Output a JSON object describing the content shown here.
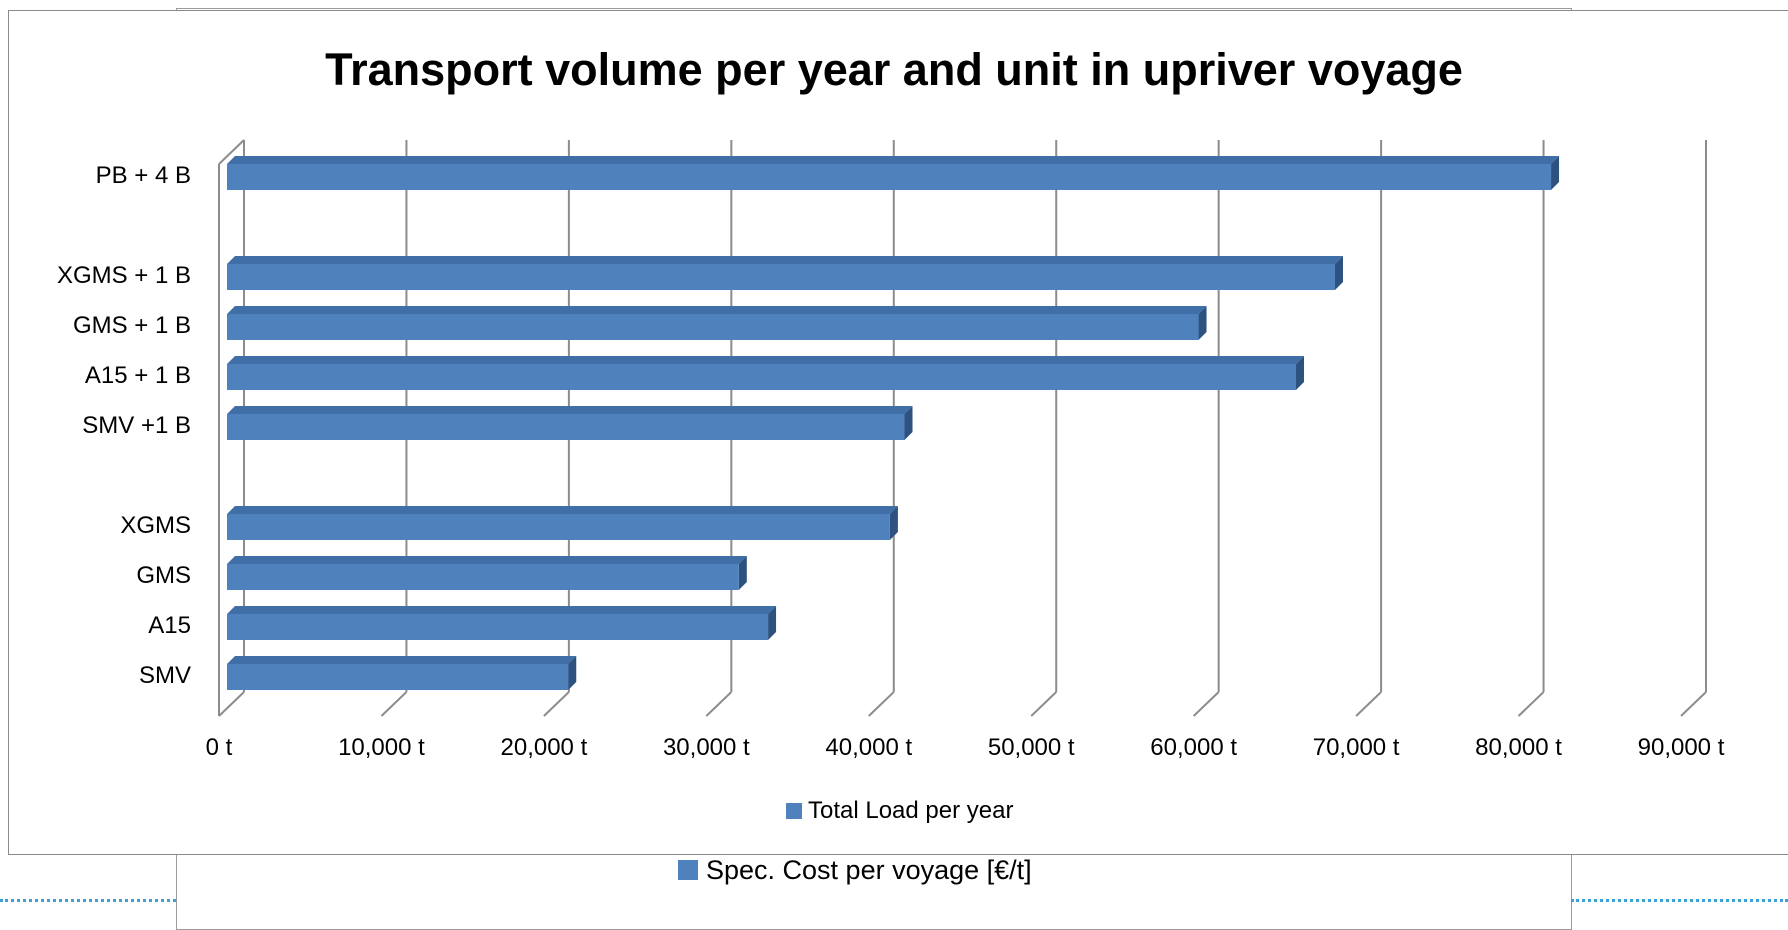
{
  "chart_data": {
    "type": "bar",
    "orientation": "horizontal",
    "title": "Transport volume per year and unit in upriver voyage",
    "categories": [
      "PB + 4 B",
      "",
      "XGMS + 1 B",
      "GMS + 1 B",
      "A15 + 1 B",
      "SMV  +1 B",
      "",
      "XGMS",
      "GMS",
      "A15",
      "SMV"
    ],
    "series": [
      {
        "name": "Total Load per year",
        "values": [
          82000,
          null,
          68700,
          60300,
          66300,
          42200,
          null,
          41300,
          32000,
          33800,
          21500
        ],
        "color": "#4f81bd"
      }
    ],
    "xlim": [
      0,
      90000
    ],
    "xticks": [
      0,
      10000,
      20000,
      30000,
      40000,
      50000,
      60000,
      70000,
      80000,
      90000
    ],
    "xtick_labels": [
      "0 t",
      "10,000 t",
      "20,000 t",
      "30,000 t",
      "40,000 t",
      "50,000 t",
      "60,000 t",
      "70,000 t",
      "80,000 t",
      "90,000 t"
    ],
    "grid": true,
    "legend": "bottom"
  },
  "overlay_legend": {
    "label": "Spec. Cost  per voyage [€/t]",
    "color": "#4f81bd"
  }
}
